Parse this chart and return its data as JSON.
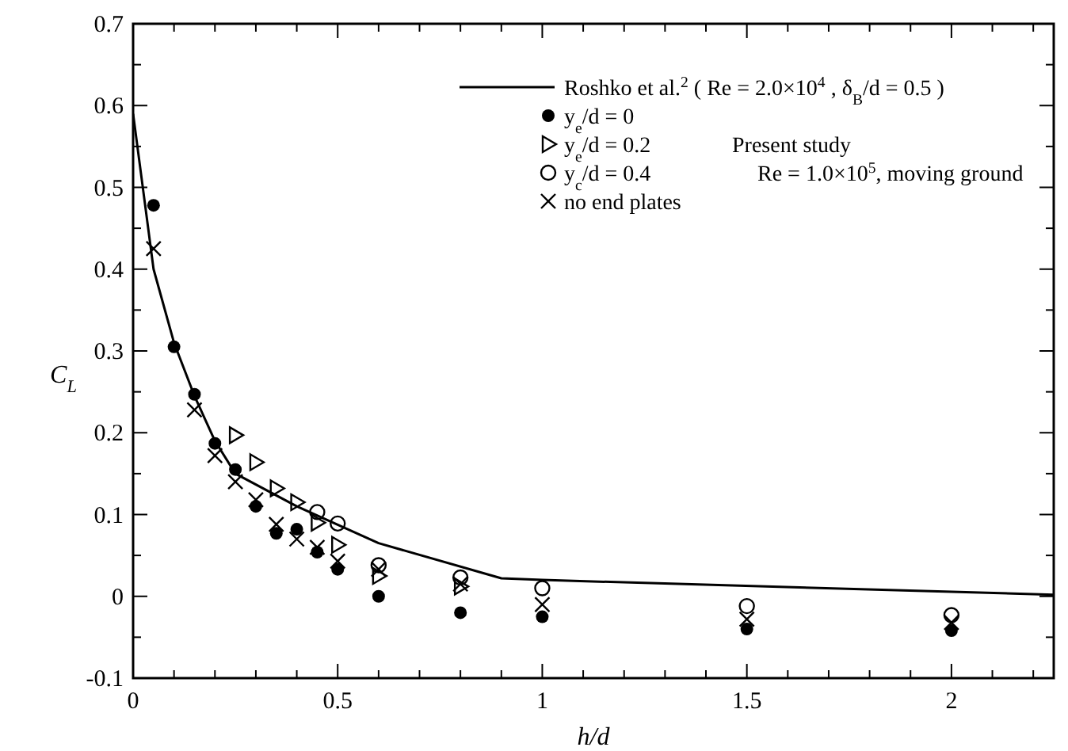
{
  "chart_data": {
    "type": "scatter",
    "xlabel": "h/d",
    "ylabel": "C$_{L}$",
    "xlim": [
      0,
      2.25
    ],
    "ylim": [
      -0.1,
      0.7
    ],
    "xticks": [
      0,
      {
        "value": 0.1,
        "label": null
      },
      {
        "value": 0.2,
        "label": null
      },
      {
        "value": 0.3,
        "label": null
      },
      {
        "value": 0.4,
        "label": null
      },
      0.5,
      {
        "value": 0.6,
        "label": null
      },
      {
        "value": 0.7,
        "label": null
      },
      {
        "value": 0.8,
        "label": null
      },
      {
        "value": 0.9,
        "label": null
      },
      1,
      {
        "value": 1.1,
        "label": null
      },
      {
        "value": 1.2,
        "label": null
      },
      {
        "value": 1.3,
        "label": null
      },
      {
        "value": 1.4,
        "label": null
      },
      1.5,
      {
        "value": 1.6,
        "label": null
      },
      {
        "value": 1.7,
        "label": null
      },
      {
        "value": 1.8,
        "label": null
      },
      {
        "value": 1.9,
        "label": null
      },
      2,
      {
        "value": 2.1,
        "label": null
      },
      {
        "value": 2.2,
        "label": null
      }
    ],
    "yticks": [
      -0.1,
      {
        "value": -0.05,
        "label": null
      },
      0,
      {
        "value": 0.05,
        "label": null
      },
      0.1,
      {
        "value": 0.15,
        "label": null
      },
      0.2,
      {
        "value": 0.25,
        "label": null
      },
      0.3,
      {
        "value": 0.35,
        "label": null
      },
      0.4,
      {
        "value": 0.45,
        "label": null
      },
      0.5,
      {
        "value": 0.55,
        "label": null
      },
      0.6,
      {
        "value": 0.65,
        "label": null
      },
      0.7
    ],
    "grid": false,
    "legend": "top",
    "annotations": [
      "Present study",
      "Re = 1.0×10$^{5}$,  moving ground"
    ],
    "series": [
      {
        "name": "Roshko et al.$^{2}$ ( Re = 2.0×10$^{4}$ ,  δ$_{B}$/d = 0.5 )",
        "type": "line",
        "color": "#000000",
        "marker": "none",
        "line_style": "solid",
        "x": [
          0,
          0.05,
          0.1,
          0.15,
          0.2,
          0.25,
          0.4,
          0.6,
          0.9,
          1.0,
          2.25
        ],
        "values": [
          0.59,
          0.4,
          0.31,
          0.245,
          0.19,
          0.15,
          0.11,
          0.065,
          0.022,
          0.02,
          0.002
        ]
      },
      {
        "name": "y$_{e}$/d = 0",
        "color": "#000000",
        "marker": "circle",
        "x": [
          0.05,
          0.1,
          0.15,
          0.2,
          0.25,
          0.3,
          0.35,
          0.4,
          0.45,
          0.5,
          0.6,
          0.8,
          1.0,
          1.5,
          2.0
        ],
        "values": [
          0.478,
          0.305,
          0.247,
          0.187,
          0.155,
          0.11,
          0.077,
          0.082,
          0.054,
          0.033,
          0.0,
          -0.02,
          -0.025,
          -0.04,
          -0.042
        ]
      },
      {
        "name": "y$_{e}$/d = 0.2",
        "color": "#000000",
        "marker": "triangle",
        "x": [
          0.25,
          0.3,
          0.35,
          0.4,
          0.45,
          0.5,
          0.6,
          0.8
        ],
        "values": [
          0.197,
          0.164,
          0.132,
          0.115,
          0.09,
          0.063,
          0.025,
          0.012
        ]
      },
      {
        "name": "y$_{c}$/d = 0.4",
        "color": "#000000",
        "marker": "circle-open",
        "x": [
          0.45,
          0.5,
          0.6,
          0.8,
          1.0,
          1.5,
          2.0
        ],
        "values": [
          0.103,
          0.089,
          0.038,
          0.023,
          0.01,
          -0.012,
          -0.023
        ]
      },
      {
        "name": "no end plates",
        "color": "#000000",
        "marker": "cross",
        "x": [
          0.05,
          0.15,
          0.2,
          0.25,
          0.3,
          0.35,
          0.4,
          0.45,
          0.5,
          0.6,
          0.8,
          1.0,
          1.5,
          2.0
        ],
        "values": [
          0.425,
          0.228,
          0.172,
          0.14,
          0.118,
          0.088,
          0.07,
          0.06,
          0.043,
          0.033,
          0.015,
          -0.01,
          -0.028,
          -0.032
        ]
      }
    ]
  }
}
